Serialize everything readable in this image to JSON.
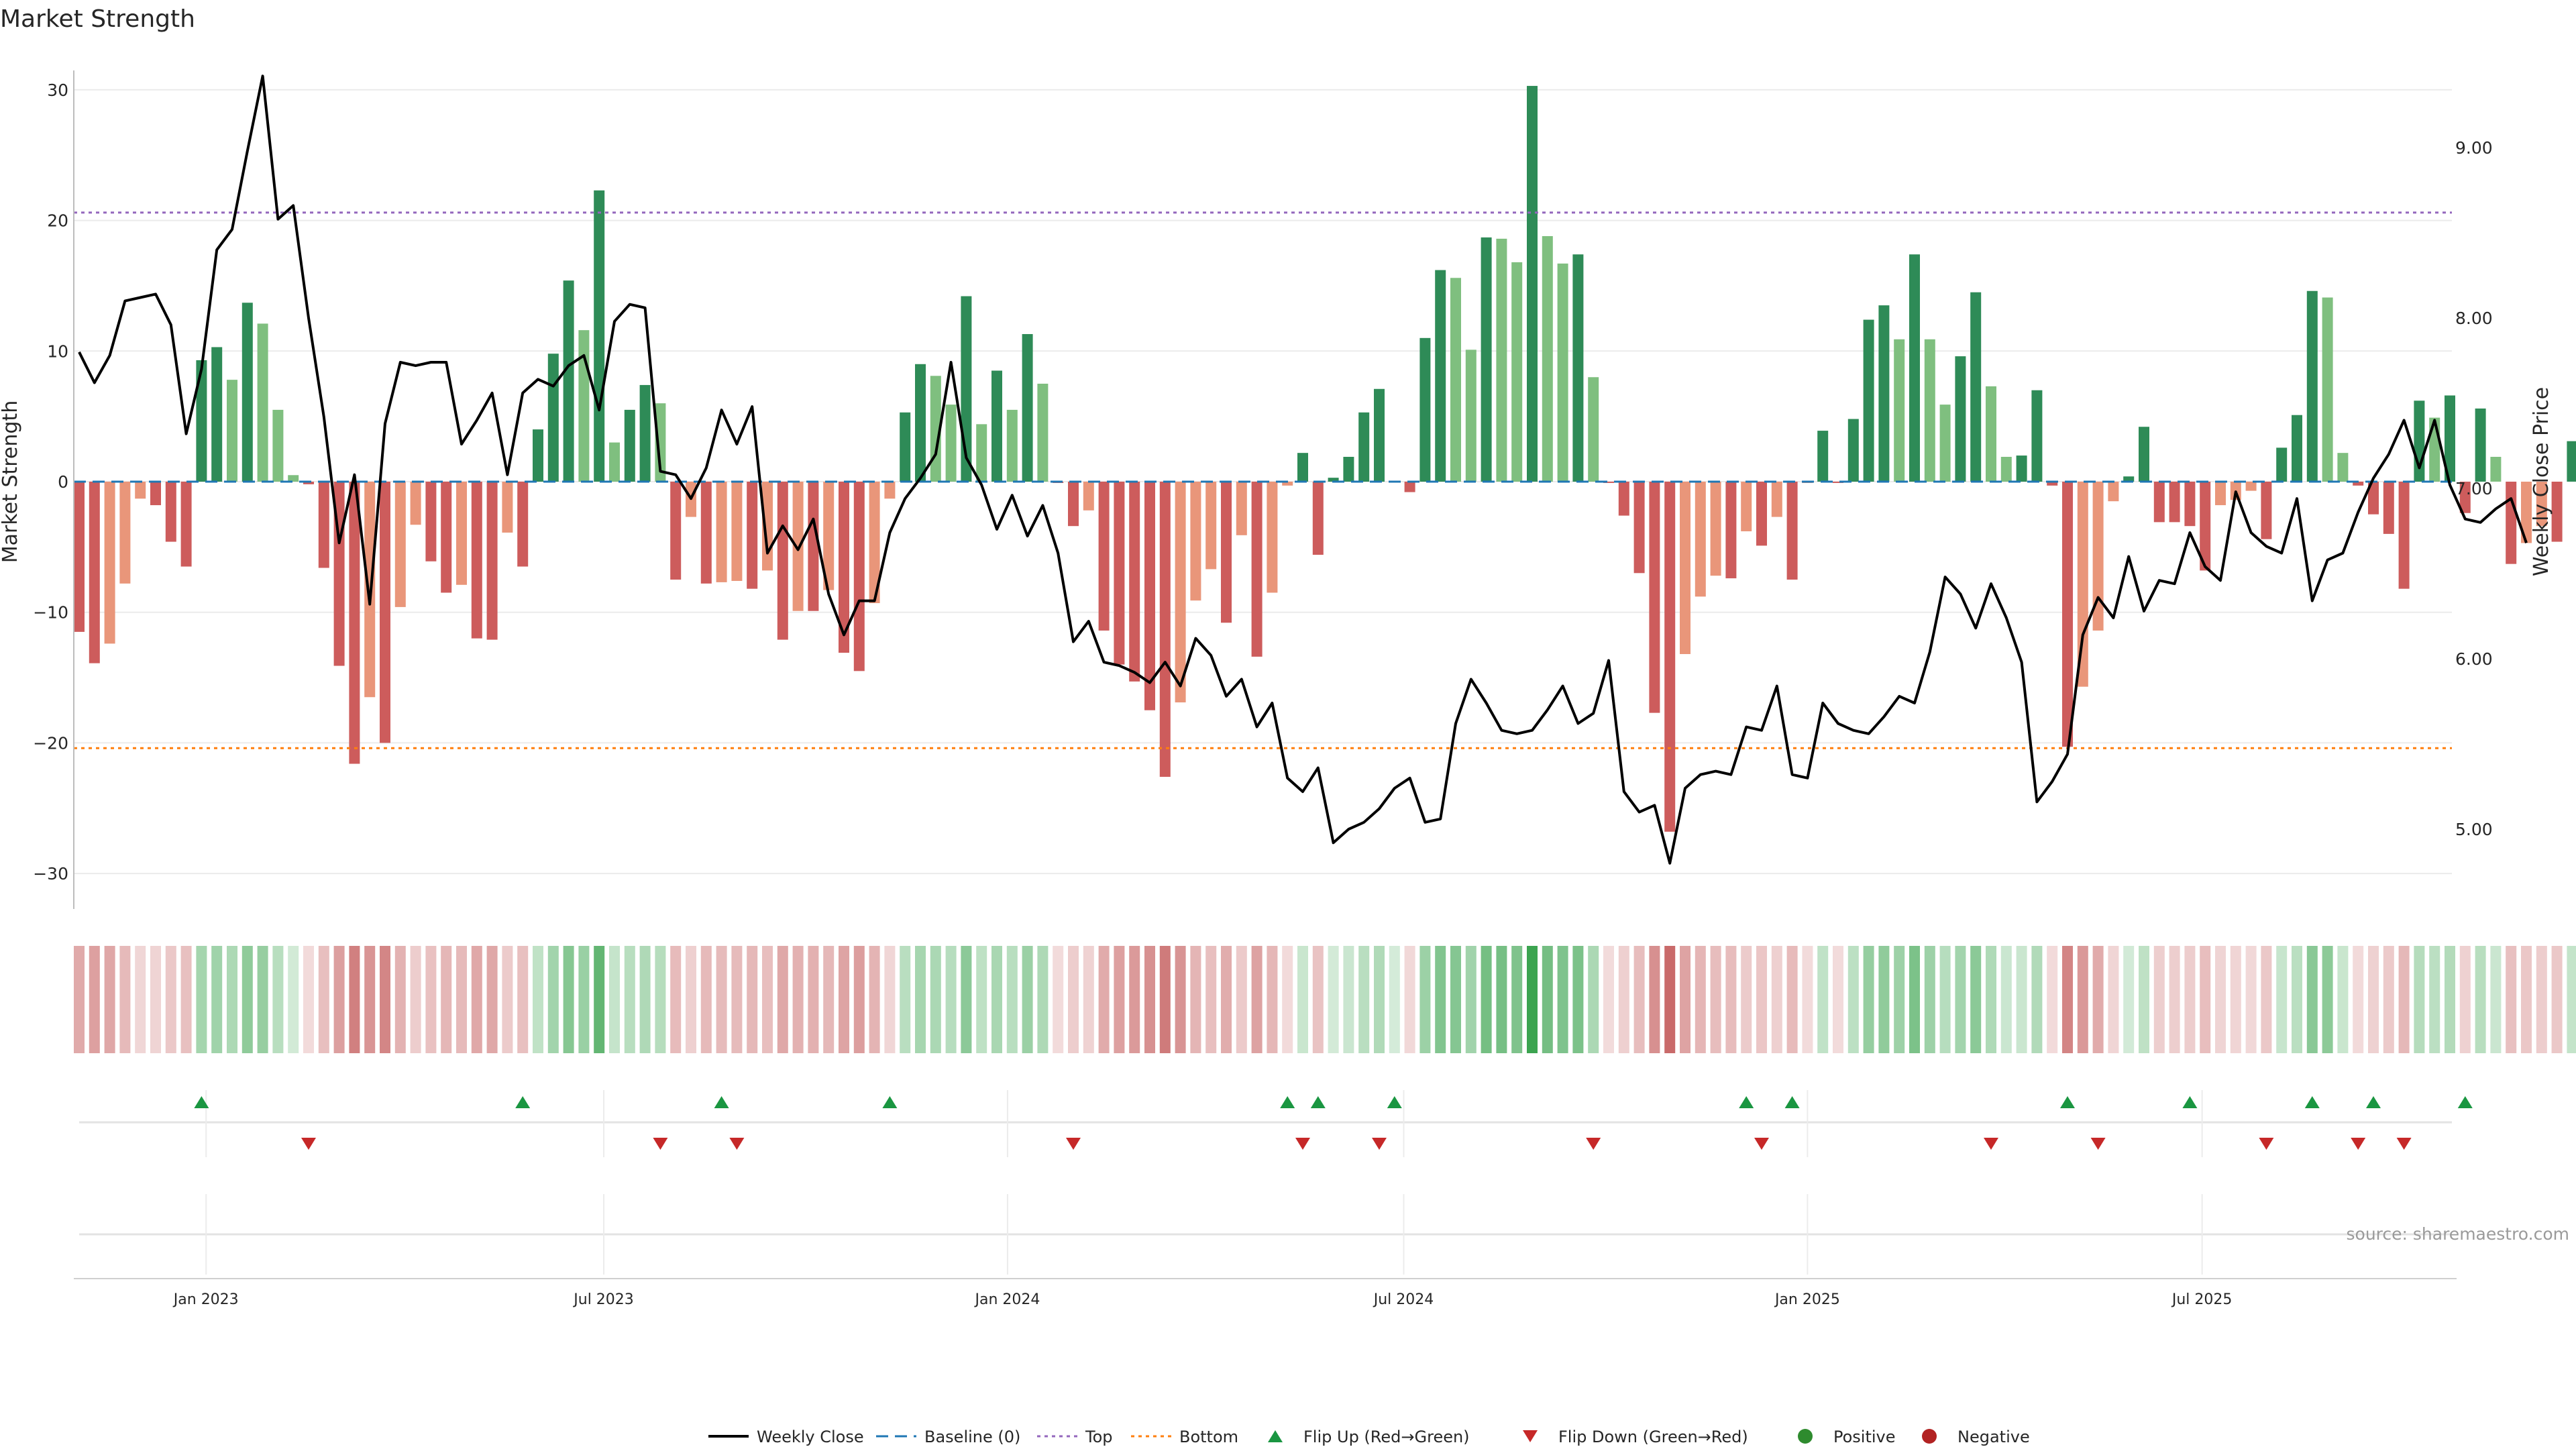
{
  "chart_data": {
    "type": "bar",
    "title": "Market Strength",
    "ylabel_left": "Market Strength",
    "ylabel_right": "Weekly Close Price",
    "source": "source: sharemaestro.com",
    "ylim_left": [
      -33,
      33
    ],
    "ylim_right": [
      4.6,
      9.6
    ],
    "yticks_left": [
      "30",
      "20",
      "10",
      "0",
      "−10",
      "−20",
      "−30"
    ],
    "yticks_left_values": [
      30,
      20,
      10,
      0,
      -10,
      -20,
      -30
    ],
    "yticks_right": [
      "9.00",
      "8.00",
      "7.00",
      "6.00",
      "5.00"
    ],
    "yticks_right_values": [
      9,
      8,
      7,
      6,
      5
    ],
    "top_level": 20.6,
    "bottom_level": -20.4,
    "date_labels": [
      "Jan 2023",
      "Jul 2023",
      "Jan 2024",
      "Jul 2024",
      "Jan 2025",
      "Jul 2025"
    ],
    "date_label_weeks": [
      8.3,
      34.3,
      60.7,
      86.6,
      113.0,
      138.8
    ],
    "strength": [
      -11.5,
      -13.9,
      -12.4,
      -7.8,
      -1.3,
      -1.8,
      -4.6,
      -6.5,
      9.3,
      10.3,
      7.8,
      13.7,
      12.1,
      5.5,
      0.5,
      -0.2,
      -6.6,
      -14.1,
      -21.6,
      -16.5,
      -20.0,
      -9.6,
      -3.3,
      -6.1,
      -8.5,
      -7.9,
      -12.0,
      -12.1,
      -3.9,
      -6.5,
      4.0,
      9.8,
      15.4,
      11.6,
      22.3,
      3.0,
      5.5,
      7.4,
      6.0,
      -7.5,
      -2.7,
      -7.8,
      -7.7,
      -7.6,
      -8.2,
      -6.8,
      -12.1,
      -9.9,
      -9.9,
      -8.3,
      -13.1,
      -14.5,
      -9.3,
      -1.3,
      5.3,
      9.0,
      8.1,
      5.9,
      14.2,
      4.4,
      8.5,
      5.5,
      11.3,
      7.5,
      -0.1,
      -3.4,
      -2.2,
      -11.4,
      -14.0,
      -15.3,
      -17.5,
      -22.6,
      -16.9,
      -9.1,
      -6.7,
      -10.8,
      -4.1,
      -13.4,
      -8.5,
      -0.3,
      2.2,
      -5.6,
      0.3,
      1.9,
      5.3,
      7.1,
      0,
      -0.8,
      11.0,
      16.2,
      15.6,
      10.1,
      18.7,
      18.6,
      16.8,
      30.3,
      18.8,
      16.7,
      17.4,
      8.0,
      -0.1,
      -2.6,
      -7.0,
      -17.7,
      -26.8,
      -13.2,
      -8.8,
      -7.2,
      -7.4,
      -3.8,
      -4.9,
      -2.7,
      -7.5,
      -0.1,
      3.9,
      -0.1,
      4.8,
      12.4,
      13.5,
      10.9,
      17.4,
      10.9,
      5.9,
      9.6,
      14.5,
      7.3,
      1.9,
      2.0,
      7.0,
      -0.3,
      -20.3,
      -15.7,
      -11.4,
      -1.5,
      0.4,
      4.2,
      -3.1,
      -3.1,
      -3.4,
      -6.8,
      -1.8,
      -1.4,
      -0.7,
      -4.4,
      2.6,
      5.1,
      14.6,
      14.1,
      2.2,
      -0.3,
      -2.5,
      -4.0,
      -8.2,
      6.2,
      4.9,
      6.6,
      -2.4,
      5.6,
      1.9,
      -6.3,
      -4.7,
      -3.4,
      -4.6,
      3.1
    ],
    "weekly_close": [
      7.8,
      7.62,
      7.78,
      8.1,
      8.12,
      8.14,
      7.96,
      7.32,
      7.7,
      8.4,
      8.52,
      8.98,
      9.42,
      8.58,
      8.66,
      8.0,
      7.42,
      6.68,
      7.08,
      6.32,
      7.38,
      7.74,
      7.72,
      7.74,
      7.74,
      7.26,
      7.4,
      7.56,
      7.08,
      7.56,
      7.64,
      7.6,
      7.72,
      7.78,
      7.46,
      7.98,
      8.08,
      8.06,
      7.1,
      7.08,
      6.94,
      7.12,
      7.46,
      7.26,
      7.48,
      6.62,
      6.78,
      6.64,
      6.82,
      6.38,
      6.14,
      6.34,
      6.34,
      6.74,
      6.94,
      7.06,
      7.2,
      7.74,
      7.18,
      7.02,
      6.76,
      6.96,
      6.72,
      6.9,
      6.62,
      6.1,
      6.22,
      5.98,
      5.96,
      5.92,
      5.86,
      5.98,
      5.84,
      6.12,
      6.02,
      5.78,
      5.88,
      5.6,
      5.74,
      5.3,
      5.22,
      5.36,
      4.92,
      5.0,
      5.04,
      5.12,
      5.24,
      5.3,
      5.04,
      5.06,
      5.62,
      5.88,
      5.74,
      5.58,
      5.56,
      5.58,
      5.7,
      5.84,
      5.62,
      5.68,
      5.99,
      5.22,
      5.1,
      5.14,
      4.8,
      5.24,
      5.32,
      5.34,
      5.32,
      5.6,
      5.58,
      5.84,
      5.32,
      5.3,
      5.74,
      5.62,
      5.58,
      5.56,
      5.66,
      5.78,
      5.74,
      6.04,
      6.48,
      6.38,
      6.18,
      6.44,
      6.24,
      5.98,
      5.16,
      5.28,
      5.44,
      6.14,
      6.36,
      6.24,
      6.6,
      6.28,
      6.46,
      6.44,
      6.74,
      6.54,
      6.46,
      6.98,
      6.74,
      6.66,
      6.62,
      6.94,
      6.34,
      6.58,
      6.62,
      6.86,
      7.06,
      7.2,
      7.4,
      7.12,
      7.4,
      7.02,
      6.82,
      6.8,
      6.88,
      6.94,
      6.68
    ],
    "flip_up_weeks": [
      8,
      29,
      42,
      53,
      79,
      81,
      86,
      109,
      112,
      130,
      138,
      146,
      150,
      156
    ],
    "flip_down_weeks": [
      15,
      38,
      43,
      65,
      80,
      85,
      99,
      110,
      125,
      132,
      143,
      149,
      152
    ],
    "legend": [
      {
        "key": "weekly_close",
        "label": "Weekly Close"
      },
      {
        "key": "baseline",
        "label": "Baseline (0)"
      },
      {
        "key": "top",
        "label": "Top"
      },
      {
        "key": "bottom",
        "label": "Bottom"
      },
      {
        "key": "flip_up",
        "label": "Flip Up (Red→Green)"
      },
      {
        "key": "flip_down",
        "label": "Flip Down (Green→Red)"
      },
      {
        "key": "positive",
        "label": "Positive"
      },
      {
        "key": "negative",
        "label": "Negative"
      }
    ],
    "colors": {
      "pos_dark": "#2e8b57",
      "pos_light": "#7fbf7f",
      "neg_dark": "#cd5c5c",
      "neg_light": "#e9967a",
      "top_line": "#9467bd",
      "bottom_line": "#ff7f0e",
      "baseline": "#1f77b4",
      "close_line": "#000000",
      "flip_up": "#1a9641",
      "flip_down": "#c62828",
      "positive_dot": "#2e8b2e",
      "negative_dot": "#b22222"
    }
  }
}
